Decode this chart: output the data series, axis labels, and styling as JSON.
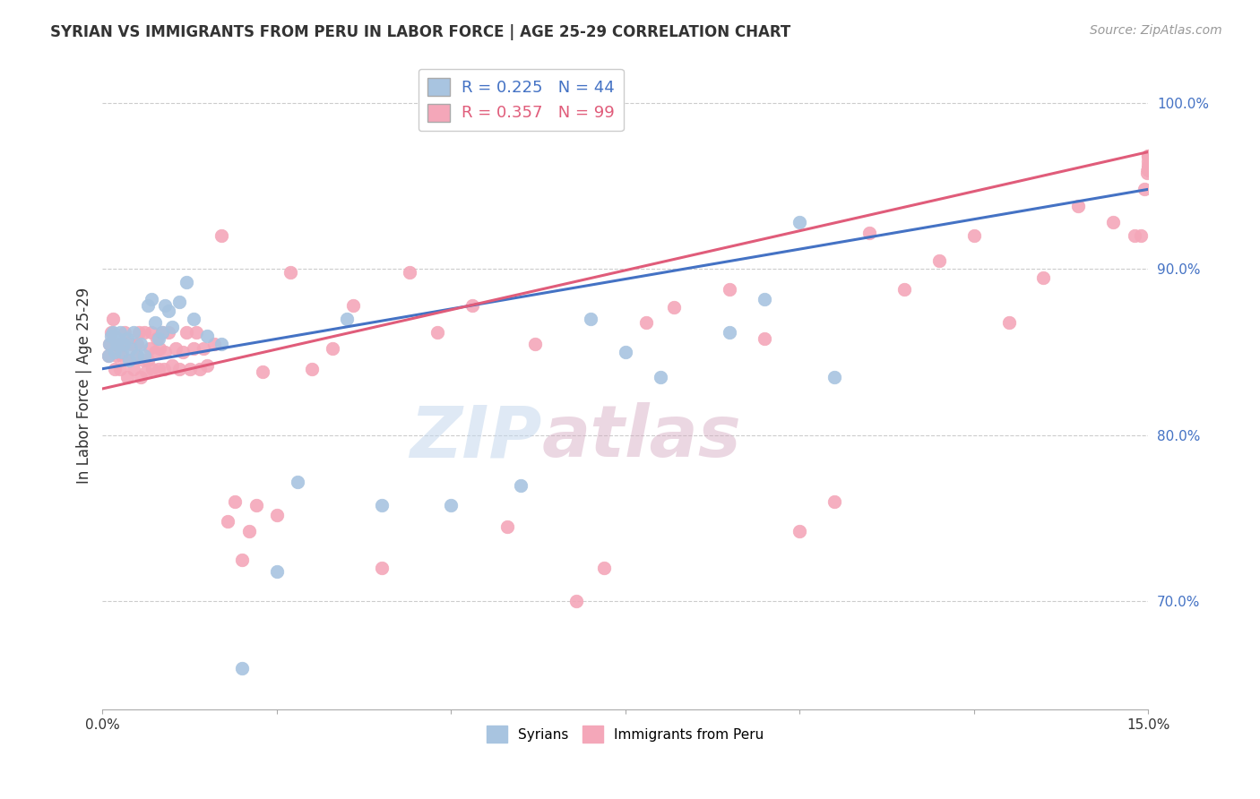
{
  "title": "SYRIAN VS IMMIGRANTS FROM PERU IN LABOR FORCE | AGE 25-29 CORRELATION CHART",
  "source": "Source: ZipAtlas.com",
  "ylabel": "In Labor Force | Age 25-29",
  "xlim": [
    0.0,
    0.15
  ],
  "ylim": [
    0.635,
    1.025
  ],
  "xticks": [
    0.0,
    0.025,
    0.05,
    0.075,
    0.1,
    0.125,
    0.15
  ],
  "xticklabels": [
    "0.0%",
    "",
    "",
    "",
    "",
    "",
    "15.0%"
  ],
  "yticks": [
    0.7,
    0.8,
    0.9,
    1.0
  ],
  "yticklabels": [
    "70.0%",
    "80.0%",
    "90.0%",
    "100.0%"
  ],
  "syrians_color": "#a8c4e0",
  "peru_color": "#f4a7b9",
  "syrian_line_color": "#4472c4",
  "peru_line_color": "#e05c7a",
  "R_syrian": 0.225,
  "N_syrian": 44,
  "R_peru": 0.357,
  "N_peru": 99,
  "syrian_intercept": 0.84,
  "syrian_slope": 0.72,
  "peru_intercept": 0.828,
  "peru_slope": 0.95,
  "watermark_zip": "ZIP",
  "watermark_atlas": "atlas",
  "background_color": "#ffffff",
  "grid_color": "#cccccc",
  "syrians_x": [
    0.0008,
    0.001,
    0.0012,
    0.0015,
    0.0018,
    0.002,
    0.0022,
    0.0025,
    0.0028,
    0.003,
    0.0035,
    0.0038,
    0.004,
    0.0045,
    0.005,
    0.0055,
    0.006,
    0.0065,
    0.007,
    0.0075,
    0.008,
    0.0085,
    0.009,
    0.0095,
    0.01,
    0.011,
    0.012,
    0.013,
    0.015,
    0.017,
    0.02,
    0.025,
    0.028,
    0.035,
    0.04,
    0.05,
    0.06,
    0.07,
    0.075,
    0.08,
    0.09,
    0.095,
    0.1,
    0.105
  ],
  "syrians_y": [
    0.848,
    0.855,
    0.86,
    0.862,
    0.85,
    0.855,
    0.858,
    0.862,
    0.85,
    0.855,
    0.858,
    0.845,
    0.852,
    0.862,
    0.848,
    0.855,
    0.848,
    0.878,
    0.882,
    0.868,
    0.858,
    0.862,
    0.878,
    0.875,
    0.865,
    0.88,
    0.892,
    0.87,
    0.86,
    0.855,
    0.66,
    0.718,
    0.772,
    0.87,
    0.758,
    0.758,
    0.77,
    0.87,
    0.85,
    0.835,
    0.862,
    0.882,
    0.928,
    0.835
  ],
  "peru_x": [
    0.0008,
    0.001,
    0.0012,
    0.0015,
    0.0018,
    0.002,
    0.0022,
    0.0025,
    0.0028,
    0.003,
    0.0032,
    0.0035,
    0.0038,
    0.004,
    0.0045,
    0.0048,
    0.005,
    0.0052,
    0.0055,
    0.0058,
    0.006,
    0.0062,
    0.0065,
    0.0068,
    0.007,
    0.0072,
    0.0075,
    0.0078,
    0.008,
    0.0082,
    0.0085,
    0.0088,
    0.009,
    0.0095,
    0.01,
    0.0105,
    0.011,
    0.0115,
    0.012,
    0.0125,
    0.013,
    0.0135,
    0.014,
    0.0145,
    0.015,
    0.016,
    0.017,
    0.018,
    0.019,
    0.02,
    0.021,
    0.022,
    0.023,
    0.025,
    0.027,
    0.03,
    0.033,
    0.036,
    0.04,
    0.044,
    0.048,
    0.053,
    0.058,
    0.062,
    0.068,
    0.072,
    0.078,
    0.082,
    0.09,
    0.095,
    0.1,
    0.105,
    0.11,
    0.115,
    0.12,
    0.125,
    0.13,
    0.135,
    0.14,
    0.145,
    0.148,
    0.149,
    0.1495,
    0.1498,
    0.15,
    0.15,
    0.15,
    0.15,
    0.15,
    0.15,
    0.15,
    0.15,
    0.15,
    0.15,
    0.15,
    0.15,
    0.15,
    0.15,
    0.15
  ],
  "peru_y": [
    0.848,
    0.855,
    0.862,
    0.87,
    0.84,
    0.848,
    0.855,
    0.84,
    0.848,
    0.855,
    0.862,
    0.835,
    0.845,
    0.855,
    0.84,
    0.848,
    0.855,
    0.862,
    0.835,
    0.845,
    0.862,
    0.838,
    0.845,
    0.852,
    0.862,
    0.84,
    0.85,
    0.858,
    0.84,
    0.852,
    0.862,
    0.84,
    0.85,
    0.862,
    0.842,
    0.852,
    0.84,
    0.85,
    0.862,
    0.84,
    0.852,
    0.862,
    0.84,
    0.852,
    0.842,
    0.855,
    0.92,
    0.748,
    0.76,
    0.725,
    0.742,
    0.758,
    0.838,
    0.752,
    0.898,
    0.84,
    0.852,
    0.878,
    0.72,
    0.898,
    0.862,
    0.878,
    0.745,
    0.855,
    0.7,
    0.72,
    0.868,
    0.877,
    0.888,
    0.858,
    0.742,
    0.76,
    0.922,
    0.888,
    0.905,
    0.92,
    0.868,
    0.895,
    0.938,
    0.928,
    0.92,
    0.92,
    0.948,
    0.958,
    0.96,
    0.962,
    0.968,
    0.96,
    0.968,
    0.96,
    0.96,
    0.96,
    0.96,
    0.96,
    0.96,
    0.96,
    0.96,
    0.96,
    0.965
  ]
}
